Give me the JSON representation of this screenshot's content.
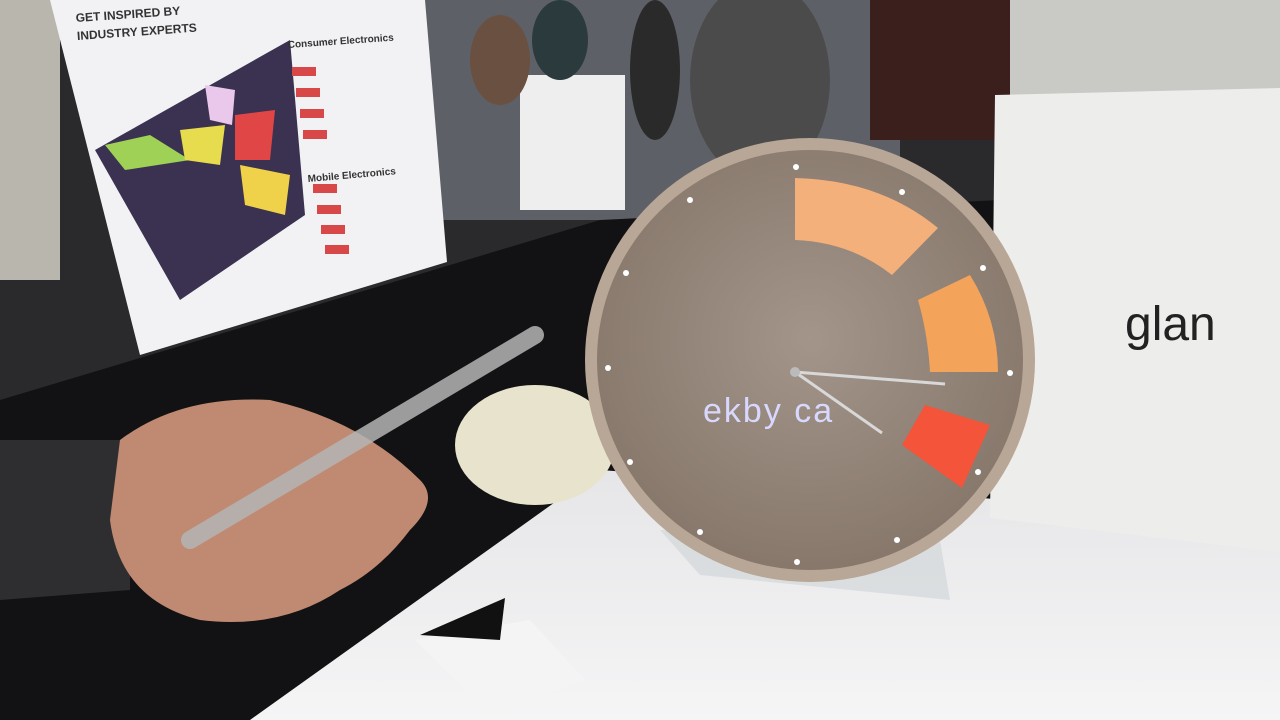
{
  "poster": {
    "title": [
      "GET INSPIRED BY",
      "INDUSTRY EXPERTS"
    ],
    "sections": [
      "Consumer Electronics",
      "Mobile Electronics"
    ]
  },
  "clock_display": "ekby ca",
  "box_logo": "glan"
}
